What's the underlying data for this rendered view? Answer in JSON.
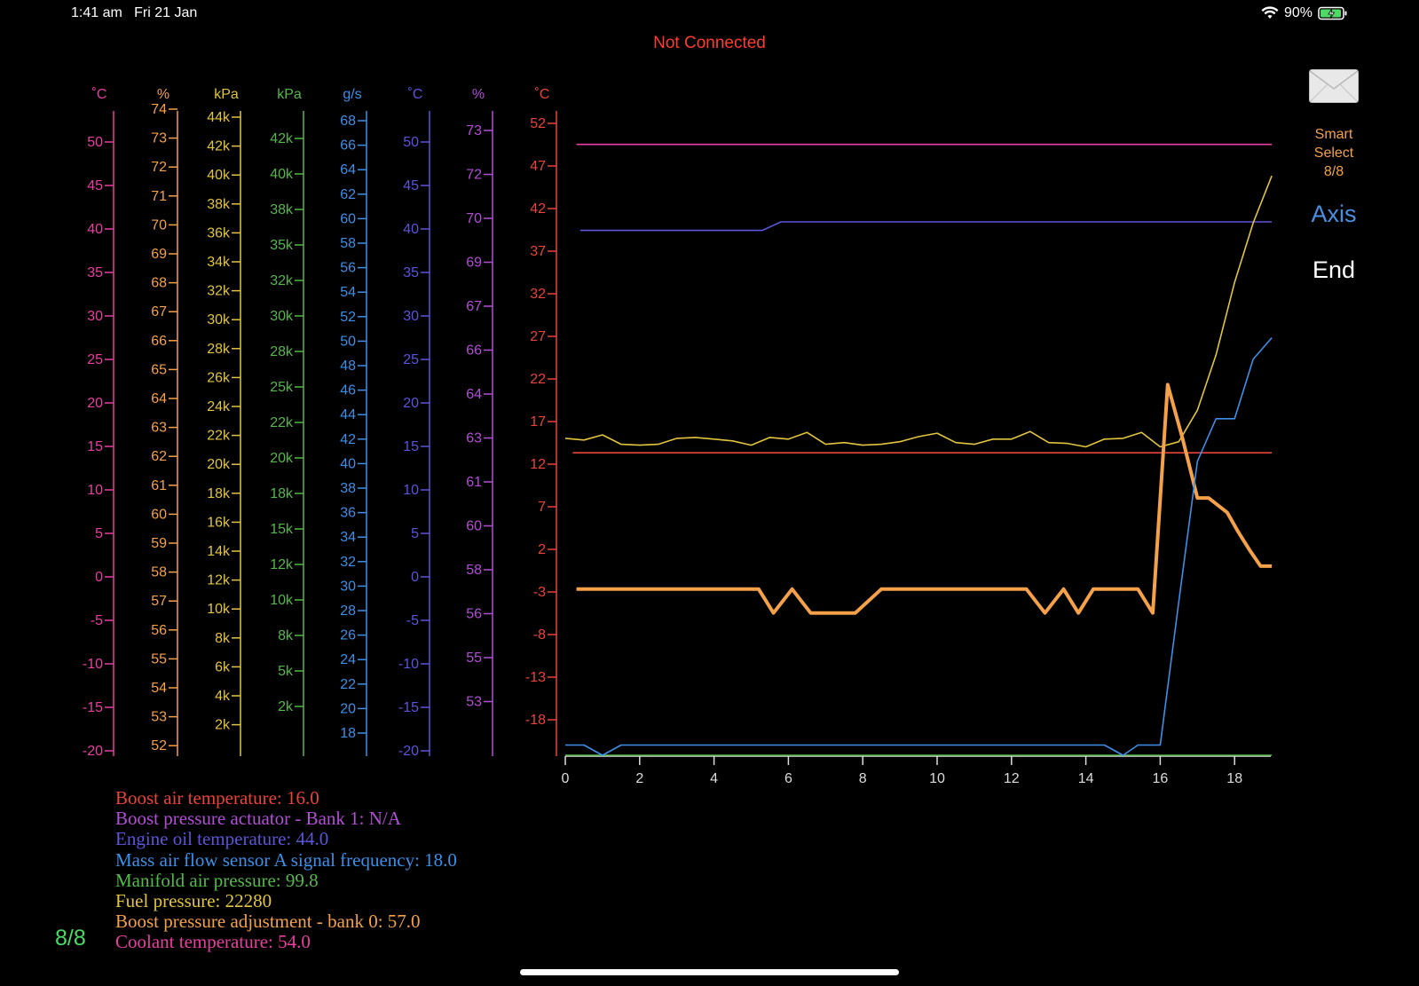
{
  "status_bar": {
    "time": "1:41 am",
    "date": "Fri 21 Jan",
    "battery": "90%"
  },
  "connection_status": "Not Connected",
  "right_panel": {
    "smart_select": [
      "Smart",
      "Select",
      "8/8"
    ],
    "axis_label": "Axis",
    "end_label": "End"
  },
  "page_count": "8/8",
  "legend": [
    {
      "text": "Boost air temperature: 16.0",
      "color": "#e8443a"
    },
    {
      "text": "Boost pressure actuator  -  Bank 1: N/A",
      "color": "#b24fd6"
    },
    {
      "text": "Engine oil temperature: 44.0",
      "color": "#5b55d9"
    },
    {
      "text": "Mass air flow sensor A signal frequency: 18.0",
      "color": "#3d8fe8"
    },
    {
      "text": "Manifold air pressure: 99.8",
      "color": "#55b84a"
    },
    {
      "text": "Fuel pressure: 22280",
      "color": "#e2c53e"
    },
    {
      "text": "Boost pressure adjustment - bank 0: 57.0",
      "color": "#f5a14a"
    },
    {
      "text": "Coolant temperature: 54.0",
      "color": "#e83fa0"
    }
  ],
  "axes": [
    {
      "unit": "˚C",
      "color": "#e83fa0",
      "ticks": [
        "50",
        "45",
        "40",
        "35",
        "30",
        "25",
        "20",
        "15",
        "10",
        "5",
        "0",
        "-5",
        "-10",
        "-15",
        "-20"
      ]
    },
    {
      "unit": "%",
      "color": "#f5a14a",
      "ticks": [
        "74",
        "73",
        "72",
        "71",
        "70",
        "69",
        "68",
        "67",
        "66",
        "65",
        "64",
        "63",
        "62",
        "61",
        "60",
        "59",
        "58",
        "57",
        "56",
        "55",
        "54",
        "53",
        "52"
      ]
    },
    {
      "unit": "kPa",
      "color": "#e2c53e",
      "ticks": [
        "44k",
        "42k",
        "40k",
        "38k",
        "36k",
        "34k",
        "32k",
        "30k",
        "28k",
        "26k",
        "24k",
        "22k",
        "20k",
        "18k",
        "16k",
        "14k",
        "12k",
        "10k",
        "8k",
        "6k",
        "4k",
        "2k"
      ]
    },
    {
      "unit": "kPa",
      "color": "#55b84a",
      "ticks": [
        "42k",
        "40k",
        "38k",
        "35k",
        "32k",
        "30k",
        "28k",
        "25k",
        "22k",
        "20k",
        "18k",
        "15k",
        "12k",
        "10k",
        "8k",
        "5k",
        "2k"
      ]
    },
    {
      "unit": "g/s",
      "color": "#3d8fe8",
      "ticks": [
        "68",
        "66",
        "64",
        "62",
        "60",
        "58",
        "56",
        "54",
        "52",
        "50",
        "48",
        "46",
        "44",
        "42",
        "40",
        "38",
        "36",
        "34",
        "32",
        "30",
        "28",
        "26",
        "24",
        "22",
        "20",
        "18"
      ]
    },
    {
      "unit": "˚C",
      "color": "#5b55d9",
      "ticks": [
        "50",
        "45",
        "40",
        "35",
        "30",
        "25",
        "20",
        "15",
        "10",
        "5",
        "0",
        "-5",
        "-10",
        "-15",
        "-20"
      ]
    },
    {
      "unit": "%",
      "color": "#b24fd6",
      "ticks": [
        "73",
        "72",
        "70",
        "69",
        "67",
        "66",
        "64",
        "63",
        "61",
        "60",
        "58",
        "56",
        "55",
        "53"
      ]
    },
    {
      "unit": "˚C",
      "color": "#e8443a",
      "ticks": [
        "52",
        "47",
        "42",
        "37",
        "32",
        "27",
        "22",
        "17",
        "12",
        "7",
        "2",
        "-3",
        "-8",
        "-13",
        "-18"
      ]
    }
  ],
  "chart_data": {
    "type": "line",
    "x_ticks": [
      "0",
      "2",
      "4",
      "6",
      "8",
      "10",
      "12",
      "14",
      "16",
      "18"
    ],
    "xlim": [
      0,
      19
    ],
    "ylim": [
      -20,
      53
    ],
    "series": [
      {
        "color": "#e83fa0",
        "x": [
          0.3,
          19
        ],
        "y": [
          51.7,
          51.7
        ]
      },
      {
        "color": "#5b55d9",
        "x": [
          0.4,
          5.3,
          5.8,
          19
        ],
        "y": [
          41.6,
          41.6,
          42.6,
          42.6
        ]
      },
      {
        "color": "#e8443a",
        "x": [
          0.2,
          19
        ],
        "y": [
          15.5,
          15.5
        ]
      },
      {
        "color": "#55b84a",
        "x": [
          0,
          19
        ],
        "y": [
          -20.0,
          -20.0
        ]
      },
      {
        "color": "#e2c53e",
        "x": [
          0,
          0.5,
          1,
          1.5,
          2,
          2.5,
          3,
          3.5,
          4,
          4.5,
          5,
          5.5,
          6,
          6.5,
          7,
          7.5,
          8,
          8.5,
          9,
          9.5,
          10,
          10.5,
          11,
          11.5,
          12,
          12.5,
          13,
          13.5,
          14,
          14.5,
          15,
          15.5,
          16,
          16.5,
          17,
          17.5,
          18,
          18.5,
          19
        ],
        "y": [
          17.2,
          17.0,
          17.6,
          16.5,
          16.4,
          16.5,
          17.2,
          17.3,
          17.1,
          16.9,
          16.4,
          17.3,
          17.1,
          17.9,
          16.5,
          16.7,
          16.4,
          16.5,
          16.8,
          17.4,
          17.8,
          16.7,
          16.5,
          17.1,
          17.1,
          18.0,
          16.7,
          16.6,
          16.2,
          17.1,
          17.2,
          17.9,
          16.2,
          16.8,
          20.5,
          27.0,
          35.5,
          42.5,
          48.0
        ]
      },
      {
        "color": "#f5a14a",
        "width": 4,
        "x": [
          0.3,
          5.2,
          5.6,
          6.1,
          6.6,
          7.0,
          7.5,
          7.8,
          8.5,
          9,
          10,
          11,
          12,
          12.4,
          12.9,
          13.4,
          13.8,
          14.2,
          15.0,
          15.4,
          15.8,
          16.2,
          16.6,
          17.0,
          17.3,
          17.8,
          18.1,
          18.4,
          18.7,
          19
        ],
        "y": [
          -0.5,
          -0.5,
          -3.3,
          -0.5,
          -3.3,
          -3.3,
          -3.3,
          -3.3,
          -0.5,
          -0.5,
          -0.5,
          -0.5,
          -0.5,
          -0.5,
          -3.3,
          -0.5,
          -3.3,
          -0.5,
          -0.5,
          -0.5,
          -3.3,
          23.5,
          17.2,
          10.2,
          10.2,
          8.5,
          6.2,
          4.1,
          2.2,
          2.2
        ]
      },
      {
        "color": "#3d8fe8",
        "x": [
          0,
          0.5,
          1.0,
          1.5,
          5,
          10,
          14.5,
          15.0,
          15.4,
          16,
          16.5,
          17,
          17.5,
          18,
          18.5,
          19
        ],
        "y": [
          -18.8,
          -18.8,
          -20.0,
          -18.8,
          -18.8,
          -18.8,
          -18.8,
          -20.0,
          -18.8,
          -18.8,
          -2.0,
          14.5,
          19.5,
          19.5,
          26.5,
          29.0
        ]
      }
    ]
  }
}
